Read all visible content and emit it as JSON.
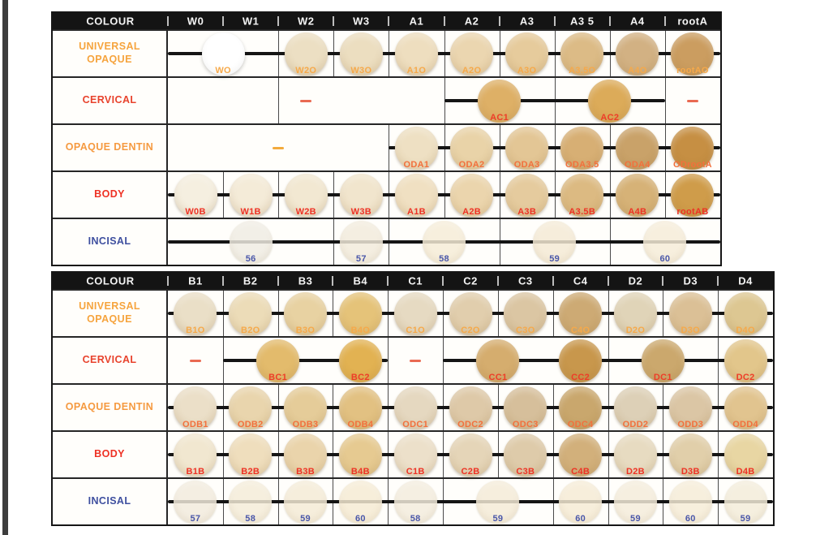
{
  "page": {
    "background": "#ffffff",
    "scan_edge_color": "#3d3d3d"
  },
  "tables": [
    {
      "name": "shade-table-wa",
      "colour_label": "COLOUR",
      "columns": [
        "W0",
        "W1",
        "W2",
        "W3",
        "A1",
        "A2",
        "A3",
        "A3 5",
        "A4",
        "rootA"
      ],
      "rows": [
        {
          "label": "UNIVERSAL OPAQUE",
          "label_color": "#f6a43e",
          "dividers": [
            2,
            3,
            4,
            5,
            6,
            7,
            8,
            9
          ],
          "wires": [
            [
              0,
              10
            ]
          ],
          "dashes": [],
          "swatches": [
            {
              "label": "WO",
              "at": 1.0,
              "fill": "#ffffff",
              "label_color": "#f6a94a",
              "style": "white"
            },
            {
              "label": "W2O",
              "at": 2.5,
              "fill": "#ecdfc3",
              "label_color": "#f6a94a"
            },
            {
              "label": "W3O",
              "at": 3.5,
              "fill": "#ecdec0",
              "label_color": "#f6a94a"
            },
            {
              "label": "A1O",
              "at": 4.5,
              "fill": "#eedebf",
              "label_color": "#f6a94a"
            },
            {
              "label": "A2O",
              "at": 5.5,
              "fill": "#ebd6b0",
              "label_color": "#f6a94a"
            },
            {
              "label": "A3O",
              "at": 6.5,
              "fill": "#e6cb9c",
              "label_color": "#f6a94a"
            },
            {
              "label": "A3.5O",
              "at": 7.5,
              "fill": "#dcbb86",
              "label_color": "#f6a94a"
            },
            {
              "label": "A4O",
              "at": 8.5,
              "fill": "#d2b183",
              "label_color": "#f6a94a"
            },
            {
              "label": "rootAO",
              "at": 9.5,
              "fill": "#cb9d60",
              "label_color": "#f6a94a"
            }
          ]
        },
        {
          "label": "CERVICAL",
          "label_color": "#e8432d",
          "dividers": [
            2,
            5,
            7,
            9
          ],
          "wires": [
            [
              5,
              9
            ]
          ],
          "dashes": [
            {
              "at": 2.5,
              "color": "#e96a52"
            },
            {
              "at": 9.5,
              "color": "#e96a52"
            }
          ],
          "swatches": [
            {
              "label": "AC1",
              "at": 6.0,
              "fill": "#deb066",
              "label_color": "#ee3d28"
            },
            {
              "label": "AC2",
              "at": 8.0,
              "fill": "#dcab59",
              "label_color": "#ee3d28"
            }
          ]
        },
        {
          "label": "OPAQUE DENTIN",
          "label_color": "#f59a41",
          "dividers": [
            4,
            5,
            6,
            7,
            8,
            9
          ],
          "wires": [
            [
              4,
              10
            ]
          ],
          "dashes": [
            {
              "at": 2.0,
              "color": "#f3aa3c"
            }
          ],
          "swatches": [
            {
              "label": "ODA1",
              "at": 4.5,
              "fill": "#eee0c3",
              "label_color": "#f2703c"
            },
            {
              "label": "ODA2",
              "at": 5.5,
              "fill": "#e9d3a8",
              "label_color": "#f2703c"
            },
            {
              "label": "ODA3",
              "at": 6.5,
              "fill": "#e3c695",
              "label_color": "#f2703c"
            },
            {
              "label": "ODA3.5",
              "at": 7.5,
              "fill": "#d7af74",
              "label_color": "#f2703c"
            },
            {
              "label": "ODA4",
              "at": 8.5,
              "fill": "#c9a269",
              "label_color": "#f2703c"
            },
            {
              "label": "ODrootA",
              "at": 9.5,
              "fill": "#c68f43",
              "label_color": "#f2703c"
            }
          ]
        },
        {
          "label": "BODY",
          "label_color": "#ee3124",
          "dividers": [
            1,
            2,
            3,
            4,
            5,
            6,
            7,
            8,
            9
          ],
          "wires": [
            [
              0,
              10
            ]
          ],
          "dashes": [],
          "swatches": [
            {
              "label": "W0B",
              "at": 0.5,
              "fill": "#f5efe0",
              "label_color": "#ee3124"
            },
            {
              "label": "W1B",
              "at": 1.5,
              "fill": "#f4ebd8",
              "label_color": "#ee3124"
            },
            {
              "label": "W2B",
              "at": 2.5,
              "fill": "#f2e8d2",
              "label_color": "#ee3124"
            },
            {
              "label": "W3B",
              "at": 3.5,
              "fill": "#f1e5cd",
              "label_color": "#ee3124"
            },
            {
              "label": "A1B",
              "at": 4.5,
              "fill": "#f0e0c2",
              "label_color": "#ee3124"
            },
            {
              "label": "A2B",
              "at": 5.5,
              "fill": "#ebd5ad",
              "label_color": "#ee3124"
            },
            {
              "label": "A3B",
              "at": 6.5,
              "fill": "#e5cb9e",
              "label_color": "#ee3124"
            },
            {
              "label": "A3.5B",
              "at": 7.5,
              "fill": "#dcba82",
              "label_color": "#ee3124"
            },
            {
              "label": "A4B",
              "at": 8.5,
              "fill": "#d6b277",
              "label_color": "#ee3124"
            },
            {
              "label": "rootAB",
              "at": 9.5,
              "fill": "#cf9c4a",
              "label_color": "#ee3124"
            }
          ]
        },
        {
          "label": "INCISAL",
          "label_color": "#3e4f9f",
          "dividers": [
            3,
            4,
            6,
            8
          ],
          "wires": [
            [
              0,
              10
            ]
          ],
          "dashes": [],
          "swatches": [
            {
              "label": "56",
              "at": 1.5,
              "fill": "rgba(240,236,226,0.84)",
              "label_color": "#4a57a9",
              "style": "glass"
            },
            {
              "label": "57",
              "at": 3.5,
              "fill": "rgba(242,235,219,0.84)",
              "label_color": "#4a57a9",
              "style": "glass"
            },
            {
              "label": "58",
              "at": 5.0,
              "fill": "rgba(245,236,214,0.84)",
              "label_color": "#4a57a9",
              "style": "glass"
            },
            {
              "label": "59",
              "at": 7.0,
              "fill": "rgba(244,234,212,0.84)",
              "label_color": "#4a57a9",
              "style": "glass"
            },
            {
              "label": "60",
              "at": 9.0,
              "fill": "rgba(245,236,216,0.84)",
              "label_color": "#4a57a9",
              "style": "glass"
            }
          ]
        }
      ]
    },
    {
      "name": "shade-table-bcd",
      "colour_label": "COLOUR",
      "columns": [
        "B1",
        "B2",
        "B3",
        "B4",
        "C1",
        "C2",
        "C3",
        "C4",
        "D2",
        "D3",
        "D4"
      ],
      "rows": [
        {
          "label": "UNIVERSAL OPAQUE",
          "label_color": "#f6a43e",
          "dividers": [
            1,
            2,
            3,
            4,
            5,
            6,
            7,
            8,
            9,
            10
          ],
          "wires": [
            [
              0,
              11
            ]
          ],
          "dashes": [],
          "swatches": [
            {
              "label": "B1O",
              "at": 0.5,
              "fill": "#eadfc7",
              "label_color": "#f6a94a"
            },
            {
              "label": "B2O",
              "at": 1.5,
              "fill": "#ecdcb8",
              "label_color": "#f6a94a"
            },
            {
              "label": "B3O",
              "at": 2.5,
              "fill": "#e8d2a2",
              "label_color": "#f6a94a"
            },
            {
              "label": "B4O",
              "at": 3.5,
              "fill": "#e5c379",
              "label_color": "#f6a94a"
            },
            {
              "label": "C1O",
              "at": 4.5,
              "fill": "#e6dac2",
              "label_color": "#f6a94a"
            },
            {
              "label": "C2O",
              "at": 5.5,
              "fill": "#e1cead",
              "label_color": "#f6a94a"
            },
            {
              "label": "C3O",
              "at": 6.5,
              "fill": "#dbc6a3",
              "label_color": "#f6a94a"
            },
            {
              "label": "C4O",
              "at": 7.5,
              "fill": "#cdaa74",
              "label_color": "#f6a94a"
            },
            {
              "label": "D2O",
              "at": 8.5,
              "fill": "#e0d4b8",
              "label_color": "#f6a94a"
            },
            {
              "label": "D3O",
              "at": 9.5,
              "fill": "#dbc096",
              "label_color": "#f6a94a"
            },
            {
              "label": "D4O",
              "at": 10.5,
              "fill": "#ddc792",
              "label_color": "#f6a94a"
            }
          ]
        },
        {
          "label": "CERVICAL",
          "label_color": "#e8432d",
          "dividers": [
            1,
            4,
            5,
            8,
            10
          ],
          "wires": [
            [
              1,
              4
            ],
            [
              5,
              11
            ]
          ],
          "dashes": [
            {
              "at": 0.5,
              "color": "#e96a52"
            },
            {
              "at": 4.5,
              "color": "#e96a52"
            }
          ],
          "swatches": [
            {
              "label": "BC1",
              "at": 2.0,
              "fill": "#e3bb6c",
              "label_color": "#ee3d28"
            },
            {
              "label": "BC2",
              "at": 3.5,
              "fill": "#e2b252",
              "label_color": "#ee3d28"
            },
            {
              "label": "CC1",
              "at": 6.0,
              "fill": "#d5ad6e",
              "label_color": "#ee3d28"
            },
            {
              "label": "CC2",
              "at": 7.5,
              "fill": "#c8974c",
              "label_color": "#ee3d28"
            },
            {
              "label": "DC1",
              "at": 9.0,
              "fill": "#cba86d",
              "label_color": "#ee3d28"
            },
            {
              "label": "DC2",
              "at": 10.5,
              "fill": "#e2c68b",
              "label_color": "#ee3d28"
            }
          ]
        },
        {
          "label": "OPAQUE DENTIN",
          "label_color": "#f59a41",
          "dividers": [
            1,
            2,
            3,
            4,
            5,
            6,
            7,
            8,
            9,
            10
          ],
          "wires": [
            [
              0,
              11
            ]
          ],
          "dashes": [],
          "swatches": [
            {
              "label": "ODB1",
              "at": 0.5,
              "fill": "#ebdfc8",
              "label_color": "#f2703c"
            },
            {
              "label": "ODB2",
              "at": 1.5,
              "fill": "#e9d5ad",
              "label_color": "#f2703c"
            },
            {
              "label": "ODB3",
              "at": 2.5,
              "fill": "#e5cc99",
              "label_color": "#f2703c"
            },
            {
              "label": "ODB4",
              "at": 3.5,
              "fill": "#e2c182",
              "label_color": "#f2703c"
            },
            {
              "label": "ODC1",
              "at": 4.5,
              "fill": "#e5d8c0",
              "label_color": "#f2703c"
            },
            {
              "label": "ODC2",
              "at": 5.5,
              "fill": "#dec9a8",
              "label_color": "#f2703c"
            },
            {
              "label": "ODC3",
              "at": 6.5,
              "fill": "#d6bf9b",
              "label_color": "#f2703c"
            },
            {
              "label": "ODC4",
              "at": 7.5,
              "fill": "#c9a76d",
              "label_color": "#f2703c"
            },
            {
              "label": "ODD2",
              "at": 8.5,
              "fill": "#ddd0b7",
              "label_color": "#f2703c"
            },
            {
              "label": "ODD3",
              "at": 9.5,
              "fill": "#dbc6a5",
              "label_color": "#f2703c"
            },
            {
              "label": "ODD4",
              "at": 10.5,
              "fill": "#e1c48f",
              "label_color": "#f2703c"
            }
          ]
        },
        {
          "label": "BODY",
          "label_color": "#ee3124",
          "dividers": [
            1,
            2,
            3,
            4,
            5,
            6,
            7,
            8,
            9,
            10
          ],
          "wires": [
            [
              0,
              11
            ]
          ],
          "dashes": [],
          "swatches": [
            {
              "label": "B1B",
              "at": 0.5,
              "fill": "#f1e7d0",
              "label_color": "#ee3124"
            },
            {
              "label": "B2B",
              "at": 1.5,
              "fill": "#efdebd",
              "label_color": "#ee3124"
            },
            {
              "label": "B3B",
              "at": 2.5,
              "fill": "#ead4ab",
              "label_color": "#ee3124"
            },
            {
              "label": "B4B",
              "at": 3.5,
              "fill": "#e6ca91",
              "label_color": "#ee3124"
            },
            {
              "label": "C1B",
              "at": 4.5,
              "fill": "#ece0ca",
              "label_color": "#ee3124"
            },
            {
              "label": "C2B",
              "at": 5.5,
              "fill": "#e5d5b8",
              "label_color": "#ee3124"
            },
            {
              "label": "C3B",
              "at": 6.5,
              "fill": "#decbaa",
              "label_color": "#ee3124"
            },
            {
              "label": "C4B",
              "at": 7.5,
              "fill": "#d2b07b",
              "label_color": "#ee3124"
            },
            {
              "label": "D2B",
              "at": 8.5,
              "fill": "#e7dbc1",
              "label_color": "#ee3124"
            },
            {
              "label": "D3B",
              "at": 9.5,
              "fill": "#e1cfaa",
              "label_color": "#ee3124"
            },
            {
              "label": "D4B",
              "at": 10.5,
              "fill": "#e8d6a3",
              "label_color": "#ee3124"
            }
          ]
        },
        {
          "label": "INCISAL",
          "label_color": "#3e4f9f",
          "dividers": [
            1,
            2,
            3,
            4,
            5,
            7,
            8,
            9,
            10
          ],
          "wires": [
            [
              0,
              11
            ]
          ],
          "dashes": [],
          "swatches": [
            {
              "label": "57",
              "at": 0.5,
              "fill": "rgba(242,235,220,0.84)",
              "label_color": "#4a57a9",
              "style": "glass"
            },
            {
              "label": "58",
              "at": 1.5,
              "fill": "rgba(244,236,216,0.84)",
              "label_color": "#4a57a9",
              "style": "glass"
            },
            {
              "label": "59",
              "at": 2.5,
              "fill": "rgba(244,235,213,0.84)",
              "label_color": "#4a57a9",
              "style": "glass"
            },
            {
              "label": "60",
              "at": 3.5,
              "fill": "rgba(245,235,211,0.84)",
              "label_color": "#4a57a9",
              "style": "glass"
            },
            {
              "label": "58",
              "at": 4.5,
              "fill": "rgba(243,236,221,0.84)",
              "label_color": "#4a57a9",
              "style": "glass"
            },
            {
              "label": "59",
              "at": 6.0,
              "fill": "rgba(244,235,215,0.84)",
              "label_color": "#4a57a9",
              "style": "glass"
            },
            {
              "label": "60",
              "at": 7.5,
              "fill": "rgba(245,235,212,0.84)",
              "label_color": "#4a57a9",
              "style": "glass"
            },
            {
              "label": "59",
              "at": 8.5,
              "fill": "rgba(244,236,218,0.84)",
              "label_color": "#4a57a9",
              "style": "glass"
            },
            {
              "label": "60",
              "at": 9.5,
              "fill": "rgba(245,236,214,0.84)",
              "label_color": "#4a57a9",
              "style": "glass"
            },
            {
              "label": "59",
              "at": 10.5,
              "fill": "rgba(243,236,217,0.84)",
              "label_color": "#4a57a9",
              "style": "glass"
            }
          ]
        }
      ]
    }
  ]
}
